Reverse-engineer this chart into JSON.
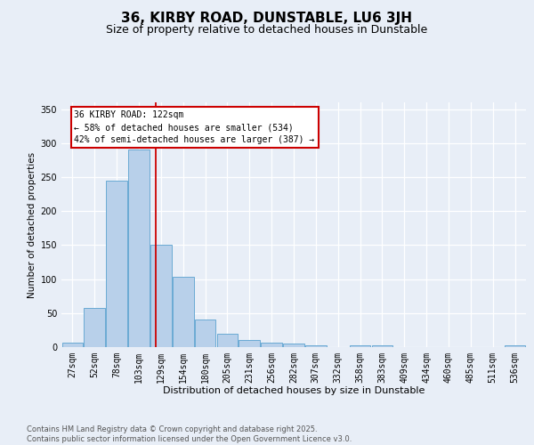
{
  "title": "36, KIRBY ROAD, DUNSTABLE, LU6 3JH",
  "subtitle": "Size of property relative to detached houses in Dunstable",
  "xlabel": "Distribution of detached houses by size in Dunstable",
  "ylabel": "Number of detached properties",
  "categories": [
    "27sqm",
    "52sqm",
    "78sqm",
    "103sqm",
    "129sqm",
    "154sqm",
    "180sqm",
    "205sqm",
    "231sqm",
    "256sqm",
    "282sqm",
    "307sqm",
    "332sqm",
    "358sqm",
    "383sqm",
    "409sqm",
    "434sqm",
    "460sqm",
    "485sqm",
    "511sqm",
    "536sqm"
  ],
  "values": [
    7,
    58,
    245,
    290,
    150,
    103,
    41,
    19,
    10,
    6,
    5,
    3,
    0,
    3,
    3,
    0,
    0,
    0,
    0,
    0,
    2
  ],
  "bar_color": "#b8d0ea",
  "bar_edge_color": "#6aaad4",
  "background_color": "#e8eef7",
  "grid_color": "#ffffff",
  "property_line_x": 3.78,
  "annotation_text": "36 KIRBY ROAD: 122sqm\n← 58% of detached houses are smaller (534)\n42% of semi-detached houses are larger (387) →",
  "annotation_box_facecolor": "#ffffff",
  "annotation_box_edgecolor": "#cc0000",
  "property_line_color": "#cc0000",
  "ylim": [
    0,
    360
  ],
  "yticks": [
    0,
    50,
    100,
    150,
    200,
    250,
    300,
    350
  ],
  "footer_line1": "Contains HM Land Registry data © Crown copyright and database right 2025.",
  "footer_line2": "Contains public sector information licensed under the Open Government Licence v3.0.",
  "title_fontsize": 11,
  "subtitle_fontsize": 9,
  "xlabel_fontsize": 8,
  "ylabel_fontsize": 7.5,
  "tick_fontsize": 7,
  "annotation_fontsize": 7,
  "footer_fontsize": 6
}
